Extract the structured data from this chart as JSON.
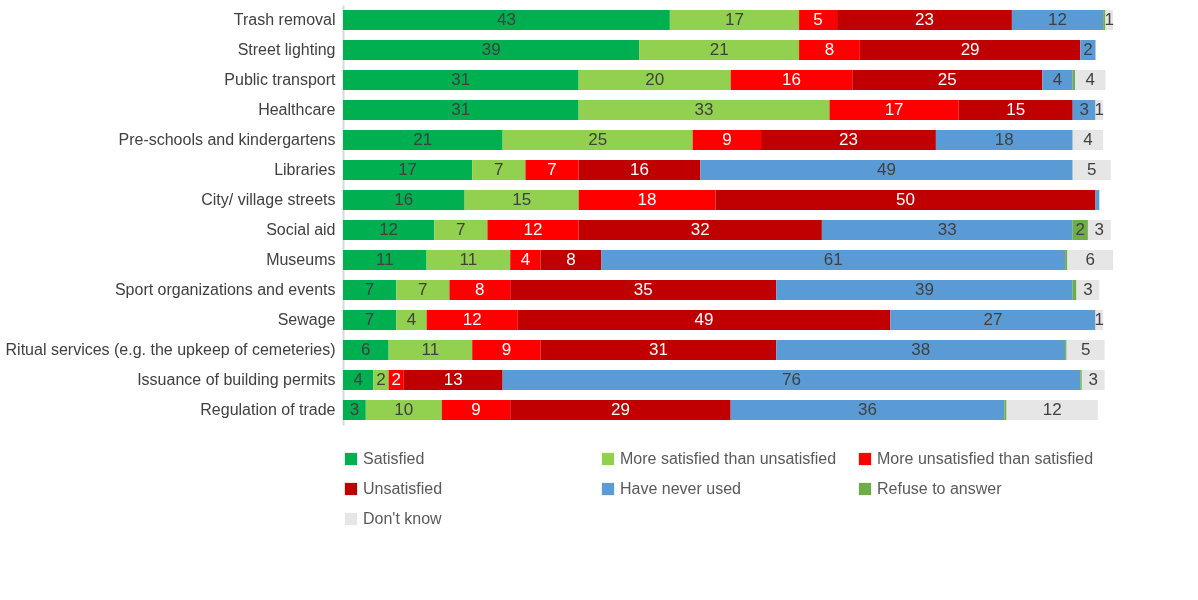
{
  "chart_data": {
    "type": "bar",
    "orientation": "horizontal",
    "stacked": true,
    "legend": "bottom",
    "grid": false,
    "categories": [
      "Trash removal",
      "Street lighting",
      "Public transport",
      "Healthcare",
      "Pre-schools and kindergartens",
      "Libraries",
      "City/ village streets",
      "Social aid",
      "Museums",
      "Sport organizations  and events",
      "Sewage",
      "Ritual services (e.g. the upkeep of cemeteries)",
      "Issuance of building permits",
      "Regulation of trade"
    ],
    "series": [
      {
        "name": "Satisfied",
        "color": "#00b050",
        "values": [
          43,
          39,
          31,
          31,
          21,
          17,
          16,
          12,
          11,
          7,
          7,
          6,
          4,
          3
        ],
        "value_labels": [
          "43",
          "39",
          "31",
          "31",
          "21",
          "17",
          "16",
          "12",
          "11",
          "7",
          "7",
          "6",
          "4",
          "3"
        ]
      },
      {
        "name": "More satisfied than unsatisfied",
        "color": "#92d050",
        "values": [
          17,
          21,
          20,
          33,
          25,
          7,
          15,
          7,
          11,
          7,
          4,
          11,
          2,
          10
        ],
        "value_labels": [
          "17",
          "21",
          "20",
          "33",
          "25",
          "7",
          "15",
          "7",
          "11",
          "7",
          "4",
          "11",
          "2",
          "10"
        ]
      },
      {
        "name": "More unsatisfied than satisfied",
        "color": "#ff0000",
        "values": [
          5,
          8,
          16,
          17,
          9,
          7,
          18,
          12,
          4,
          8,
          12,
          9,
          2,
          9
        ],
        "value_labels": [
          "5",
          "8",
          "16",
          "17",
          "9",
          "7",
          "18",
          "12",
          "4",
          "8",
          "12",
          "9",
          "2",
          "9"
        ]
      },
      {
        "name": "Unsatisfied",
        "color": "#c00000",
        "values": [
          23,
          29,
          25,
          15,
          23,
          16,
          50,
          32,
          8,
          35,
          49,
          31,
          13,
          29
        ],
        "value_labels": [
          "23",
          "29",
          "25",
          "15",
          "23",
          "16",
          "50",
          "32",
          "8",
          "35",
          "49",
          "31",
          "13",
          "29"
        ]
      },
      {
        "name": "Have never used",
        "color": "#5b9bd5",
        "values": [
          12,
          2,
          4,
          3,
          18,
          49,
          0.5,
          33,
          61,
          39,
          27,
          38,
          76,
          36
        ],
        "value_labels": [
          "12",
          "2",
          "4",
          "3",
          "18",
          "49",
          null,
          "33",
          "61",
          "39",
          "27",
          "38",
          "76",
          "36"
        ]
      },
      {
        "name": "Refuse to answer",
        "color": "#70ad47",
        "values": [
          0.3,
          null,
          0.3,
          null,
          null,
          null,
          null,
          2,
          0.3,
          0.5,
          null,
          0.2,
          0.2,
          0.3
        ],
        "value_labels": [
          null,
          null,
          null,
          null,
          null,
          null,
          null,
          "2",
          null,
          null,
          null,
          null,
          null,
          null
        ]
      },
      {
        "name": "Don't know",
        "color": "#e7e6e6",
        "values": [
          1,
          null,
          4,
          1,
          4,
          5,
          null,
          3,
          6,
          3,
          1,
          5,
          3,
          12
        ],
        "value_labels": [
          "1",
          null,
          "4",
          "1",
          "4",
          "5",
          null,
          "3",
          "6",
          "3",
          "1",
          "5",
          "3",
          "12"
        ]
      }
    ]
  }
}
